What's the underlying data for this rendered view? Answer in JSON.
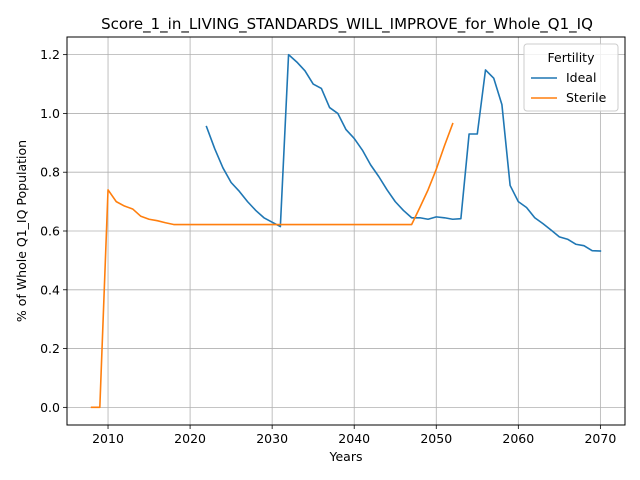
{
  "chart_data": {
    "type": "line",
    "title": "Score_1_in_LIVING_STANDARDS_WILL_IMPROVE_for_Whole_Q1_IQ",
    "xlabel": "Years",
    "ylabel": "% of Whole Q1_IQ Population",
    "xlim": [
      2005,
      2073
    ],
    "ylim": [
      -0.06,
      1.26
    ],
    "xticks": [
      "2010",
      "2020",
      "2030",
      "2040",
      "2050",
      "2060",
      "2070"
    ],
    "yticks": [
      "0.0",
      "0.2",
      "0.4",
      "0.6",
      "0.8",
      "1.0",
      "1.2"
    ],
    "grid": true,
    "legend": {
      "title": "Fertility",
      "position": "top-right"
    },
    "series": [
      {
        "name": "Ideal",
        "color": "#1f77b4",
        "x": [
          2022,
          2023,
          2024,
          2025,
          2026,
          2027,
          2028,
          2029,
          2030,
          2031,
          2032,
          2033,
          2034,
          2035,
          2036,
          2037,
          2038,
          2039,
          2040,
          2041,
          2042,
          2043,
          2044,
          2045,
          2046,
          2047,
          2048,
          2049,
          2050,
          2051,
          2052,
          2053,
          2054,
          2055,
          2056,
          2057,
          2058,
          2059,
          2060,
          2061,
          2062,
          2063,
          2064,
          2065,
          2066,
          2067,
          2068,
          2069,
          2070
        ],
        "y": [
          0.955,
          0.88,
          0.815,
          0.765,
          0.735,
          0.7,
          0.67,
          0.645,
          0.63,
          0.615,
          1.2,
          1.175,
          1.145,
          1.1,
          1.085,
          1.02,
          1.0,
          0.945,
          0.915,
          0.875,
          0.825,
          0.785,
          0.74,
          0.7,
          0.67,
          0.645,
          0.645,
          0.64,
          0.648,
          0.645,
          0.64,
          0.642,
          0.93,
          0.93,
          1.148,
          1.12,
          1.03,
          0.755,
          0.7,
          0.68,
          0.645,
          0.625,
          0.603,
          0.58,
          0.572,
          0.555,
          0.55,
          0.533,
          0.532
        ]
      },
      {
        "name": "Sterile",
        "color": "#ff7f0e",
        "x": [
          2008,
          2009,
          2010,
          2011,
          2012,
          2013,
          2014,
          2015,
          2016,
          2017,
          2018,
          2019,
          2020,
          2021,
          2022,
          2023,
          2024,
          2025,
          2026,
          2027,
          2028,
          2029,
          2030,
          2031,
          2032,
          2033,
          2034,
          2035,
          2036,
          2037,
          2038,
          2039,
          2040,
          2041,
          2042,
          2043,
          2044,
          2045,
          2046,
          2047,
          2048,
          2049,
          2050,
          2051,
          2052
        ],
        "y": [
          0.0,
          0.0,
          0.74,
          0.7,
          0.685,
          0.675,
          0.65,
          0.64,
          0.635,
          0.628,
          0.622,
          0.622,
          0.622,
          0.622,
          0.622,
          0.622,
          0.622,
          0.622,
          0.622,
          0.622,
          0.622,
          0.622,
          0.622,
          0.622,
          0.622,
          0.622,
          0.622,
          0.622,
          0.622,
          0.622,
          0.622,
          0.622,
          0.622,
          0.622,
          0.622,
          0.622,
          0.622,
          0.622,
          0.622,
          0.622,
          0.68,
          0.74,
          0.81,
          0.89,
          0.965
        ]
      }
    ]
  }
}
